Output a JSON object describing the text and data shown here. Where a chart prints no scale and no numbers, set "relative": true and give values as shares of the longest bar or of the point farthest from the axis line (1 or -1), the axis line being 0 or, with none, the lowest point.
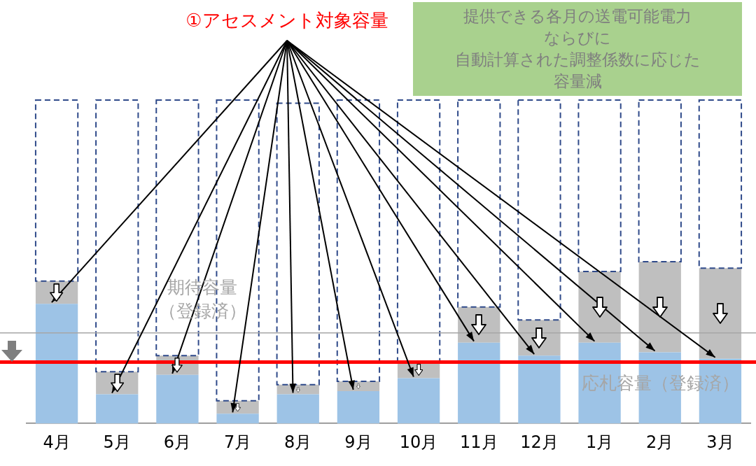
{
  "chart_data": {
    "type": "bar",
    "title": "①アセスメント対象容量",
    "relative": true,
    "stacked": true,
    "categories": [
      "4月",
      "5月",
      "6月",
      "7月",
      "8月",
      "9月",
      "10月",
      "11月",
      "12月",
      "1月",
      "2月",
      "3月"
    ],
    "series": [
      {
        "color": "#9dc3e6",
        "values": [
          0.37,
          0.09,
          0.15,
          0.03,
          0.09,
          0.1,
          0.14,
          0.25,
          0.21,
          0.25,
          0.22,
          0.2
        ]
      },
      {
        "color": "#bfbfbf",
        "values": [
          0.07,
          0.07,
          0.06,
          0.04,
          0.03,
          0.03,
          0.05,
          0.11,
          0.11,
          0.22,
          0.28,
          0.28
        ]
      },
      {
        "color": "#2f4a8a",
        "line_style": "dashed",
        "values": [
          0.56,
          0.84,
          0.79,
          0.93,
          0.87,
          0.87,
          0.81,
          0.64,
          0.68,
          0.53,
          0.5,
          0.52
        ]
      }
    ],
    "ref_lines": [
      {
        "axis": "y",
        "value": 0.28,
        "label": "期待容量（登録済）",
        "color": "#a6a6a6"
      },
      {
        "axis": "y",
        "value": 0.19,
        "label": "応札容量（登録済）",
        "color": "#ff0000"
      }
    ],
    "annotations": [
      "提供できる各月の送電可能電力",
      "ならびに",
      "自動計算された調整係数に応じた",
      "容量減"
    ],
    "grid": false,
    "legend": false,
    "tick_labels": "x"
  }
}
